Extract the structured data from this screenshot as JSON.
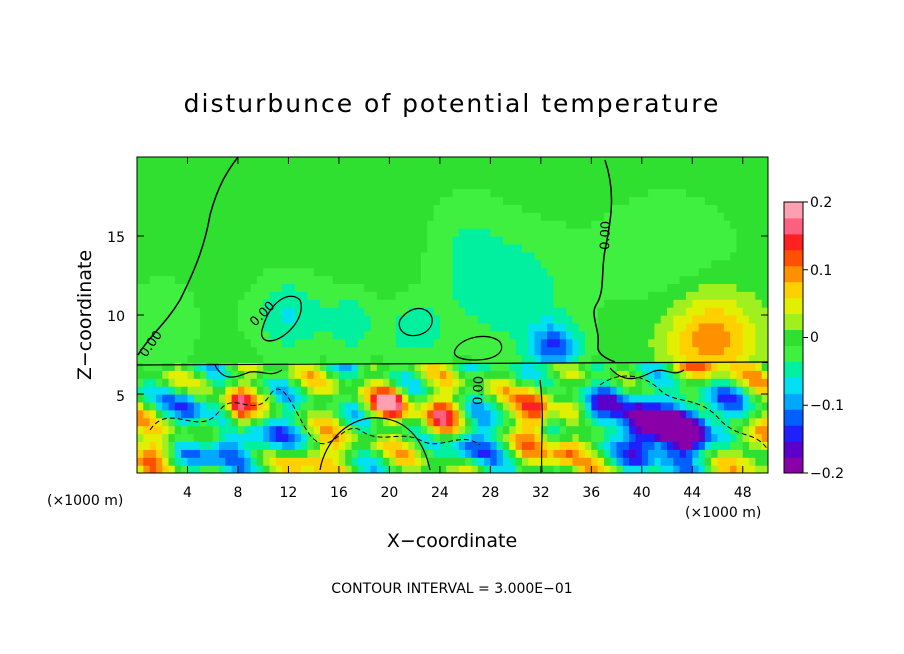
{
  "chart_data": {
    "type": "heatmap",
    "title": "disturbunce of potential temperature",
    "xlabel": "X−coordinate",
    "ylabel": "Z−coordinate",
    "x_unit_label": "(×1000 m)",
    "x_unit_label_right": "(×1000 m)",
    "xlim": [
      0,
      50
    ],
    "ylim": [
      0,
      20
    ],
    "x_ticks": [
      4,
      8,
      12,
      16,
      20,
      24,
      28,
      32,
      36,
      40,
      44,
      48
    ],
    "x_tick_labels": [
      "4",
      "8",
      "12",
      "16",
      "20",
      "24",
      "28",
      "32",
      "36",
      "40",
      "44",
      "48"
    ],
    "y_ticks": [
      5,
      10,
      15
    ],
    "y_tick_labels": [
      "5",
      "10",
      "15"
    ],
    "colorbar": {
      "range": [
        -0.2,
        0.2
      ],
      "ticks": [
        0.2,
        0.1,
        0,
        -0.1,
        -0.2
      ],
      "tick_labels": [
        "0.2",
        "0.1",
        "0",
        "−0.1",
        "−0.2"
      ],
      "colors": [
        "#8a00a8",
        "#5a00c8",
        "#2020ff",
        "#0060ff",
        "#00a8ff",
        "#00e0f0",
        "#00f0a0",
        "#40f040",
        "#30e030",
        "#a0f020",
        "#e0f000",
        "#ffd000",
        "#ff9000",
        "#ff5000",
        "#ff2020",
        "#ff6080",
        "#ffa0b0"
      ]
    },
    "contour_interval_text": "CONTOUR INTERVAL = 3.000E−01",
    "contour_labels": [
      "0.00",
      "0.00",
      "0.00",
      "0.00"
    ],
    "background_value": 0,
    "features": [
      {
        "x": 45.5,
        "z": 8.5,
        "rx": 3.5,
        "rz": 3.0,
        "v": 0.1
      },
      {
        "x": 30.0,
        "z": 11.5,
        "rx": 4.5,
        "rz": 4.0,
        "v": -0.05
      },
      {
        "x": 33.0,
        "z": 8.0,
        "rx": 2.0,
        "rz": 1.5,
        "v": -0.12
      },
      {
        "x": 12.0,
        "z": 10.0,
        "rx": 3.0,
        "rz": 2.5,
        "v": -0.06
      },
      {
        "x": 17.0,
        "z": 9.5,
        "rx": 2.0,
        "rz": 2.0,
        "v": -0.05
      },
      {
        "x": 22.0,
        "z": 9.0,
        "rx": 2.5,
        "rz": 2.0,
        "v": -0.05
      },
      {
        "x": 42.0,
        "z": 14.0,
        "rx": 6.0,
        "rz": 4.0,
        "v": -0.03
      },
      {
        "x": 26.0,
        "z": 14.0,
        "rx": 3.0,
        "rz": 4.0,
        "v": -0.03
      },
      {
        "x": 2.0,
        "z": 9.5,
        "rx": 3.0,
        "rz": 3.0,
        "v": -0.03
      },
      {
        "x": 43.0,
        "z": 2.5,
        "rx": 3.0,
        "rz": 2.0,
        "v": -0.2
      },
      {
        "x": 40.0,
        "z": 3.0,
        "rx": 1.5,
        "rz": 2.0,
        "v": -0.18
      },
      {
        "x": 4.0,
        "z": 4.0,
        "rx": 1.5,
        "rz": 1.5,
        "v": -0.12
      },
      {
        "x": 6.5,
        "z": 1.5,
        "rx": 2.5,
        "rz": 1.2,
        "v": -0.14
      },
      {
        "x": 11.0,
        "z": 2.5,
        "rx": 1.5,
        "rz": 1.5,
        "v": -0.13
      },
      {
        "x": 26.5,
        "z": 2.0,
        "rx": 2.0,
        "rz": 1.5,
        "v": -0.12
      },
      {
        "x": 36.0,
        "z": 3.5,
        "rx": 1.5,
        "rz": 1.2,
        "v": -0.1
      },
      {
        "x": 20.0,
        "z": 4.5,
        "rx": 1.5,
        "rz": 1.0,
        "v": 0.15
      },
      {
        "x": 8.0,
        "z": 4.0,
        "rx": 1.0,
        "rz": 1.5,
        "v": 0.15
      },
      {
        "x": 24.0,
        "z": 3.5,
        "rx": 1.5,
        "rz": 1.5,
        "v": 0.12
      },
      {
        "x": 31.5,
        "z": 4.0,
        "rx": 1.2,
        "rz": 2.0,
        "v": 0.14
      },
      {
        "x": 34.0,
        "z": 1.5,
        "rx": 1.5,
        "rz": 1.0,
        "v": 0.12
      },
      {
        "x": 14.0,
        "z": 1.0,
        "rx": 2.0,
        "rz": 1.0,
        "v": 0.1
      },
      {
        "x": 48.5,
        "z": 1.5,
        "rx": 1.5,
        "rz": 1.5,
        "v": 0.1
      },
      {
        "x": 2.0,
        "z": 2.0,
        "rx": 1.5,
        "rz": 1.5,
        "v": 0.1
      },
      {
        "x": 38.0,
        "z": 5.0,
        "rx": 2.0,
        "rz": 1.2,
        "v": -0.08
      },
      {
        "x": 46.0,
        "z": 4.5,
        "rx": 2.5,
        "rz": 1.5,
        "v": -0.08
      }
    ]
  }
}
